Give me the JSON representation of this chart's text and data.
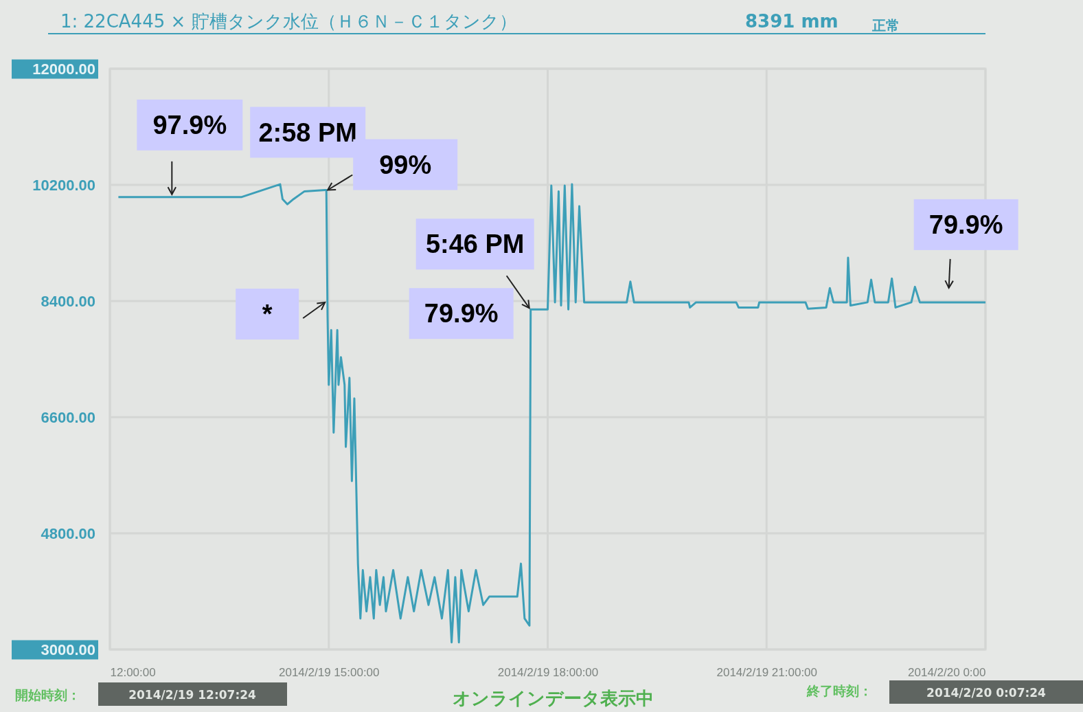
{
  "chart_data": {
    "type": "line",
    "title": "1: 22CA445 × 貯槽タンク水位（Ｈ６Ｎ－Ｃ１タンク）",
    "xlim": [
      "2014-02-19T12:00",
      "2014-02-20T00:00"
    ],
    "xticks": [
      {
        "value": "2014-02-19T12:00",
        "label": "12:00:00"
      },
      {
        "value": "2014-02-19T15:00",
        "label": "2014/2/19 15:00:00"
      },
      {
        "value": "2014-02-19T18:00",
        "label": "2014/2/19 18:00:00"
      },
      {
        "value": "2014-02-19T21:00",
        "label": "2014/2/19 21:00:00"
      },
      {
        "value": "2014-02-20T00:00",
        "label": "2014/2/20 0:00"
      }
    ],
    "ylim": [
      3000,
      12000
    ],
    "yticks": [
      {
        "value": 3000,
        "label": "3000.00"
      },
      {
        "value": 4800,
        "label": "4800.00"
      },
      {
        "value": 6600,
        "label": "6600.00"
      },
      {
        "value": 8400,
        "label": "8400.00"
      },
      {
        "value": 10200,
        "label": "10200.00"
      },
      {
        "value": 12000,
        "label": "12000.00"
      }
    ],
    "grid": true,
    "marker": "none",
    "line_style": "solid",
    "series": [
      {
        "color": "#3d9fb8",
        "x": [
          "2014-02-19T12:07",
          "2014-02-19T13:48",
          "2014-02-19T14:20",
          "2014-02-19T14:22",
          "2014-02-19T14:26",
          "2014-02-19T14:31",
          "2014-02-19T14:40",
          "2014-02-19T14:57",
          "2014-02-19T14:58",
          "2014-02-19T14:59",
          "2014-02-19T15:00",
          "2014-02-19T15:02",
          "2014-02-19T15:04",
          "2014-02-19T15:07",
          "2014-02-19T15:08",
          "2014-02-19T15:10",
          "2014-02-19T15:13",
          "2014-02-19T15:14",
          "2014-02-19T15:17",
          "2014-02-19T15:19",
          "2014-02-19T15:21",
          "2014-02-19T15:24",
          "2014-02-19T15:26",
          "2014-02-19T15:28",
          "2014-02-19T15:31",
          "2014-02-19T15:34",
          "2014-02-19T15:37",
          "2014-02-19T15:39",
          "2014-02-19T15:42",
          "2014-02-19T15:45",
          "2014-02-19T15:47",
          "2014-02-19T15:53",
          "2014-02-19T15:59",
          "2014-02-19T16:05",
          "2014-02-19T16:10",
          "2014-02-19T16:16",
          "2014-02-19T16:22",
          "2014-02-19T16:27",
          "2014-02-19T16:33",
          "2014-02-19T16:38",
          "2014-02-19T16:41",
          "2014-02-19T16:44",
          "2014-02-19T16:47",
          "2014-02-19T16:49",
          "2014-02-19T16:55",
          "2014-02-19T17:01",
          "2014-02-19T17:07",
          "2014-02-19T17:12",
          "2014-02-19T17:35",
          "2014-02-19T17:38",
          "2014-02-19T17:41",
          "2014-02-19T17:45",
          "2014-02-19T17:46",
          "2014-02-19T18:00",
          "2014-02-19T18:03",
          "2014-02-19T18:06",
          "2014-02-19T18:09",
          "2014-02-19T18:11",
          "2014-02-19T18:14",
          "2014-02-19T18:17",
          "2014-02-19T18:20",
          "2014-02-19T18:23",
          "2014-02-19T18:26",
          "2014-02-19T18:30",
          "2014-02-19T19:05",
          "2014-02-19T19:08",
          "2014-02-19T19:11",
          "2014-02-19T19:56",
          "2014-02-19T19:57",
          "2014-02-19T20:02",
          "2014-02-19T20:35",
          "2014-02-19T20:37",
          "2014-02-19T20:53",
          "2014-02-19T20:54",
          "2014-02-19T21:32",
          "2014-02-19T21:34",
          "2014-02-19T21:49",
          "2014-02-19T21:52",
          "2014-02-19T21:55",
          "2014-02-19T22:06",
          "2014-02-19T22:07",
          "2014-02-19T22:09",
          "2014-02-19T22:23",
          "2014-02-19T22:26",
          "2014-02-19T22:29",
          "2014-02-19T22:40",
          "2014-02-19T22:43",
          "2014-02-19T22:46",
          "2014-02-19T22:59",
          "2014-02-19T23:02",
          "2014-02-19T23:06",
          "2014-02-20T00:00"
        ],
        "values": [
          10010,
          10010,
          10210,
          9980,
          9900,
          9980,
          10100,
          10120,
          10120,
          8170,
          7100,
          7950,
          6360,
          7950,
          7100,
          7530,
          7100,
          6140,
          7210,
          5610,
          6890,
          4330,
          3480,
          4230,
          3590,
          4120,
          3480,
          4230,
          3690,
          4120,
          3590,
          4230,
          3480,
          4120,
          3590,
          4230,
          3690,
          4120,
          3480,
          4230,
          3110,
          4120,
          3110,
          4230,
          3590,
          4230,
          3690,
          3820,
          3820,
          4330,
          3480,
          3370,
          8270,
          8270,
          10190,
          8380,
          10100,
          8330,
          10190,
          8270,
          10210,
          8380,
          9870,
          8380,
          8380,
          8700,
          8380,
          8380,
          8300,
          8380,
          8380,
          8300,
          8300,
          8380,
          8380,
          8280,
          8300,
          8600,
          8380,
          8380,
          9070,
          8330,
          8380,
          8730,
          8380,
          8380,
          8750,
          8300,
          8380,
          8620,
          8380,
          8380
        ]
      }
    ],
    "annotations": [
      {
        "text": "97.9%",
        "x": "2014-02-19T12:51",
        "y": 10010
      },
      {
        "text": "2:58 PM",
        "x": "2014-02-19T14:58",
        "y": 10120
      },
      {
        "text": "99%",
        "x": "2014-02-19T14:58",
        "y": 10120
      },
      {
        "text": "*",
        "x": "2014-02-19T14:58",
        "y": 8400
      },
      {
        "text": "5:46 PM",
        "x": "2014-02-19T17:46",
        "y": 8270
      },
      {
        "text": "79.9%",
        "x": "2014-02-19T17:46",
        "y": 8270
      },
      {
        "text": "79.9%",
        "x": "2014-02-19T23:31",
        "y": 8380
      },
      "8391 mm",
      "正常",
      "開始時刻：",
      "2014/2/19 12:07:24",
      "オンラインデータ表示中",
      "終了時刻：",
      "2014/2/20 0:07:24"
    ]
  }
}
